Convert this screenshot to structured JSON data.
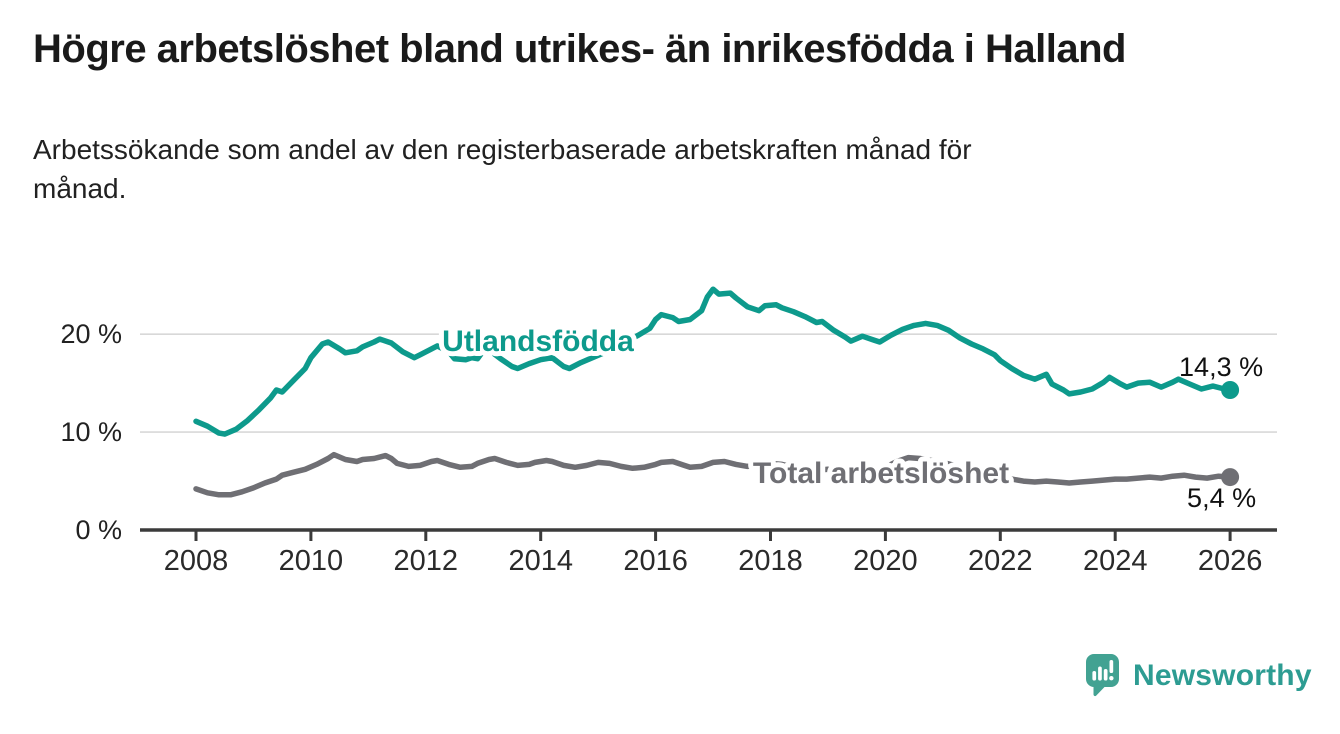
{
  "chart_data": {
    "type": "line",
    "title": "Högre arbetslöshet bland utrikes- än inrikesfödda i Halland",
    "subtitle": "Arbetssökande som andel av den registerbaserade arbetskraften månad för månad.",
    "unit": "%",
    "grid": "horizontal",
    "legend_position": "inline-labels-on-lines",
    "x_axis": {
      "range": [
        2007.2,
        2026.8
      ],
      "ticks": [
        2008,
        2010,
        2012,
        2014,
        2016,
        2018,
        2020,
        2022,
        2024,
        2026
      ]
    },
    "y_axis": {
      "range": [
        0,
        27
      ],
      "ticks": [
        {
          "value": 0,
          "label": "0 %"
        },
        {
          "value": 10,
          "label": "10 %"
        },
        {
          "value": 20,
          "label": "20 %"
        }
      ]
    },
    "style": {
      "grid_color": "#d8d8d8",
      "axis_color": "#3b3b3b",
      "tick_text_color": "#222222",
      "value_text_color": "#111111",
      "background": "#ffffff"
    },
    "series": [
      {
        "name": "Utlandsfödda",
        "color": "#0d9a8c",
        "end_label": "14,3 %",
        "end_value": 14.3,
        "points": [
          [
            2008.0,
            11.1
          ],
          [
            2008.2,
            10.6
          ],
          [
            2008.4,
            9.9
          ],
          [
            2008.5,
            9.8
          ],
          [
            2008.7,
            10.3
          ],
          [
            2008.9,
            11.2
          ],
          [
            2009.1,
            12.3
          ],
          [
            2009.3,
            13.5
          ],
          [
            2009.4,
            14.3
          ],
          [
            2009.5,
            14.1
          ],
          [
            2009.7,
            15.3
          ],
          [
            2009.9,
            16.5
          ],
          [
            2010.0,
            17.6
          ],
          [
            2010.2,
            19.0
          ],
          [
            2010.3,
            19.2
          ],
          [
            2010.5,
            18.5
          ],
          [
            2010.6,
            18.1
          ],
          [
            2010.8,
            18.3
          ],
          [
            2010.9,
            18.7
          ],
          [
            2011.1,
            19.2
          ],
          [
            2011.2,
            19.5
          ],
          [
            2011.4,
            19.1
          ],
          [
            2011.6,
            18.2
          ],
          [
            2011.8,
            17.6
          ],
          [
            2011.9,
            17.9
          ],
          [
            2012.1,
            18.5
          ],
          [
            2012.2,
            18.8
          ],
          [
            2012.4,
            18.2
          ],
          [
            2012.5,
            17.5
          ],
          [
            2012.7,
            17.4
          ],
          [
            2012.8,
            17.6
          ],
          [
            2012.9,
            17.5
          ],
          [
            2013.0,
            18.3
          ],
          [
            2013.1,
            18.4
          ],
          [
            2013.3,
            17.5
          ],
          [
            2013.5,
            16.7
          ],
          [
            2013.6,
            16.5
          ],
          [
            2013.8,
            17.0
          ],
          [
            2014.0,
            17.4
          ],
          [
            2014.2,
            17.6
          ],
          [
            2014.4,
            16.7
          ],
          [
            2014.5,
            16.5
          ],
          [
            2014.7,
            17.1
          ],
          [
            2014.9,
            17.6
          ],
          [
            2015.1,
            18.1
          ],
          [
            2015.3,
            18.5
          ],
          [
            2015.5,
            19.3
          ],
          [
            2015.7,
            19.9
          ],
          [
            2015.9,
            20.6
          ],
          [
            2016.0,
            21.5
          ],
          [
            2016.1,
            22.0
          ],
          [
            2016.3,
            21.7
          ],
          [
            2016.4,
            21.3
          ],
          [
            2016.6,
            21.5
          ],
          [
            2016.8,
            22.4
          ],
          [
            2016.9,
            23.8
          ],
          [
            2017.0,
            24.6
          ],
          [
            2017.1,
            24.1
          ],
          [
            2017.3,
            24.2
          ],
          [
            2017.4,
            23.7
          ],
          [
            2017.6,
            22.8
          ],
          [
            2017.8,
            22.4
          ],
          [
            2017.9,
            22.9
          ],
          [
            2018.1,
            23.0
          ],
          [
            2018.2,
            22.7
          ],
          [
            2018.4,
            22.3
          ],
          [
            2018.6,
            21.8
          ],
          [
            2018.8,
            21.2
          ],
          [
            2018.9,
            21.3
          ],
          [
            2019.1,
            20.4
          ],
          [
            2019.3,
            19.7
          ],
          [
            2019.4,
            19.3
          ],
          [
            2019.6,
            19.8
          ],
          [
            2019.8,
            19.4
          ],
          [
            2019.9,
            19.2
          ],
          [
            2020.1,
            19.9
          ],
          [
            2020.3,
            20.5
          ],
          [
            2020.5,
            20.9
          ],
          [
            2020.7,
            21.1
          ],
          [
            2020.9,
            20.9
          ],
          [
            2021.1,
            20.4
          ],
          [
            2021.3,
            19.6
          ],
          [
            2021.5,
            19.0
          ],
          [
            2021.7,
            18.5
          ],
          [
            2021.9,
            17.9
          ],
          [
            2022.0,
            17.3
          ],
          [
            2022.2,
            16.5
          ],
          [
            2022.4,
            15.8
          ],
          [
            2022.6,
            15.4
          ],
          [
            2022.8,
            15.9
          ],
          [
            2022.9,
            14.9
          ],
          [
            2023.1,
            14.3
          ],
          [
            2023.2,
            13.9
          ],
          [
            2023.4,
            14.1
          ],
          [
            2023.6,
            14.4
          ],
          [
            2023.8,
            15.1
          ],
          [
            2023.9,
            15.6
          ],
          [
            2024.1,
            14.9
          ],
          [
            2024.2,
            14.6
          ],
          [
            2024.4,
            15.0
          ],
          [
            2024.6,
            15.1
          ],
          [
            2024.8,
            14.6
          ],
          [
            2025.0,
            15.1
          ],
          [
            2025.1,
            15.4
          ],
          [
            2025.3,
            14.9
          ],
          [
            2025.5,
            14.4
          ],
          [
            2025.7,
            14.7
          ],
          [
            2025.9,
            14.4
          ],
          [
            2026.0,
            14.3
          ]
        ]
      },
      {
        "name": "Total arbetslöshet",
        "color": "#6f6f74",
        "end_label": "5,4 %",
        "end_value": 5.4,
        "points": [
          [
            2008.0,
            4.2
          ],
          [
            2008.2,
            3.8
          ],
          [
            2008.4,
            3.6
          ],
          [
            2008.6,
            3.6
          ],
          [
            2008.8,
            3.9
          ],
          [
            2009.0,
            4.3
          ],
          [
            2009.2,
            4.8
          ],
          [
            2009.4,
            5.2
          ],
          [
            2009.5,
            5.6
          ],
          [
            2009.7,
            5.9
          ],
          [
            2009.9,
            6.2
          ],
          [
            2010.1,
            6.7
          ],
          [
            2010.3,
            7.3
          ],
          [
            2010.4,
            7.7
          ],
          [
            2010.6,
            7.2
          ],
          [
            2010.8,
            7.0
          ],
          [
            2010.9,
            7.2
          ],
          [
            2011.1,
            7.3
          ],
          [
            2011.3,
            7.6
          ],
          [
            2011.4,
            7.3
          ],
          [
            2011.5,
            6.8
          ],
          [
            2011.7,
            6.5
          ],
          [
            2011.9,
            6.6
          ],
          [
            2012.1,
            7.0
          ],
          [
            2012.2,
            7.1
          ],
          [
            2012.4,
            6.7
          ],
          [
            2012.6,
            6.4
          ],
          [
            2012.8,
            6.5
          ],
          [
            2012.9,
            6.8
          ],
          [
            2013.1,
            7.2
          ],
          [
            2013.2,
            7.3
          ],
          [
            2013.4,
            6.9
          ],
          [
            2013.6,
            6.6
          ],
          [
            2013.8,
            6.7
          ],
          [
            2013.9,
            6.9
          ],
          [
            2014.1,
            7.1
          ],
          [
            2014.2,
            7.0
          ],
          [
            2014.4,
            6.6
          ],
          [
            2014.6,
            6.4
          ],
          [
            2014.8,
            6.6
          ],
          [
            2015.0,
            6.9
          ],
          [
            2015.2,
            6.8
          ],
          [
            2015.4,
            6.5
          ],
          [
            2015.6,
            6.3
          ],
          [
            2015.8,
            6.4
          ],
          [
            2016.0,
            6.7
          ],
          [
            2016.1,
            6.9
          ],
          [
            2016.3,
            7.0
          ],
          [
            2016.5,
            6.6
          ],
          [
            2016.6,
            6.4
          ],
          [
            2016.8,
            6.5
          ],
          [
            2017.0,
            6.9
          ],
          [
            2017.2,
            7.0
          ],
          [
            2017.4,
            6.7
          ],
          [
            2017.6,
            6.5
          ],
          [
            2017.8,
            6.6
          ],
          [
            2018.0,
            6.8
          ],
          [
            2018.2,
            6.7
          ],
          [
            2018.4,
            6.4
          ],
          [
            2018.6,
            6.2
          ],
          [
            2018.8,
            6.1
          ],
          [
            2019.0,
            6.2
          ],
          [
            2019.2,
            6.0
          ],
          [
            2019.4,
            5.8
          ],
          [
            2019.6,
            5.9
          ],
          [
            2019.8,
            6.1
          ],
          [
            2020.0,
            6.4
          ],
          [
            2020.2,
            7.0
          ],
          [
            2020.4,
            7.4
          ],
          [
            2020.6,
            7.3
          ],
          [
            2020.8,
            7.1
          ],
          [
            2021.0,
            6.9
          ],
          [
            2021.2,
            6.6
          ],
          [
            2021.4,
            6.2
          ],
          [
            2021.6,
            5.9
          ],
          [
            2021.8,
            5.7
          ],
          [
            2022.0,
            5.5
          ],
          [
            2022.2,
            5.2
          ],
          [
            2022.4,
            5.0
          ],
          [
            2022.6,
            4.9
          ],
          [
            2022.8,
            5.0
          ],
          [
            2023.0,
            4.9
          ],
          [
            2023.2,
            4.8
          ],
          [
            2023.4,
            4.9
          ],
          [
            2023.6,
            5.0
          ],
          [
            2023.8,
            5.1
          ],
          [
            2024.0,
            5.2
          ],
          [
            2024.2,
            5.2
          ],
          [
            2024.4,
            5.3
          ],
          [
            2024.6,
            5.4
          ],
          [
            2024.8,
            5.3
          ],
          [
            2025.0,
            5.5
          ],
          [
            2025.2,
            5.6
          ],
          [
            2025.4,
            5.4
          ],
          [
            2025.6,
            5.3
          ],
          [
            2025.8,
            5.5
          ],
          [
            2026.0,
            5.4
          ]
        ]
      }
    ]
  },
  "logo": {
    "text": "Newsworthy",
    "text_color": "#2d9c92",
    "icon_color": "#42a292",
    "icon": "newsworthy-chart-bubble-icon"
  }
}
